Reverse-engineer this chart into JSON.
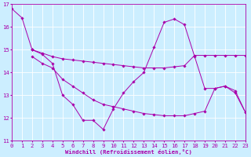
{
  "xlabel": "Windchill (Refroidissement éolien,°C)",
  "background_color": "#cceeff",
  "line_color": "#aa00aa",
  "grid_color": "#ffffff",
  "ylim": [
    11,
    17
  ],
  "xlim": [
    0,
    23
  ],
  "yticks": [
    11,
    12,
    13,
    14,
    15,
    16,
    17
  ],
  "xticks": [
    0,
    1,
    2,
    3,
    4,
    5,
    6,
    7,
    8,
    9,
    10,
    11,
    12,
    13,
    14,
    15,
    16,
    17,
    18,
    19,
    20,
    21,
    22,
    23
  ],
  "series": [
    {
      "x": [
        0,
        1,
        2
      ],
      "y": [
        16.8,
        16.4,
        15.0
      ]
    },
    {
      "x": [
        2,
        3,
        4,
        5,
        6,
        7,
        8,
        9,
        10,
        11,
        12,
        13,
        14,
        15,
        16,
        17,
        18,
        19,
        20,
        21,
        22,
        23
      ],
      "y": [
        15.0,
        14.8,
        14.4,
        13.0,
        12.6,
        11.9,
        11.9,
        11.5,
        12.4,
        13.1,
        13.6,
        14.0,
        15.1,
        16.2,
        16.35,
        16.1,
        14.7,
        13.3,
        13.3,
        13.4,
        13.1,
        12.25
      ]
    },
    {
      "x": [
        2,
        3,
        4,
        5,
        6,
        7,
        8,
        9,
        10,
        11,
        12,
        13,
        14,
        15,
        16,
        17,
        18,
        19,
        20,
        21,
        22,
        23
      ],
      "y": [
        15.0,
        14.85,
        14.7,
        14.6,
        14.55,
        14.5,
        14.45,
        14.4,
        14.35,
        14.3,
        14.25,
        14.2,
        14.2,
        14.2,
        14.25,
        14.3,
        14.75,
        14.75,
        14.75,
        14.75,
        14.75,
        14.75
      ]
    },
    {
      "x": [
        2,
        3,
        4,
        5,
        6,
        7,
        8,
        9,
        10,
        11,
        12,
        13,
        14,
        15,
        16,
        17,
        18,
        19,
        20,
        21,
        22,
        23
      ],
      "y": [
        14.7,
        14.4,
        14.2,
        13.7,
        13.4,
        13.1,
        12.8,
        12.6,
        12.5,
        12.4,
        12.3,
        12.2,
        12.15,
        12.1,
        12.1,
        12.1,
        12.2,
        12.3,
        13.3,
        13.4,
        13.2,
        12.25
      ]
    }
  ]
}
